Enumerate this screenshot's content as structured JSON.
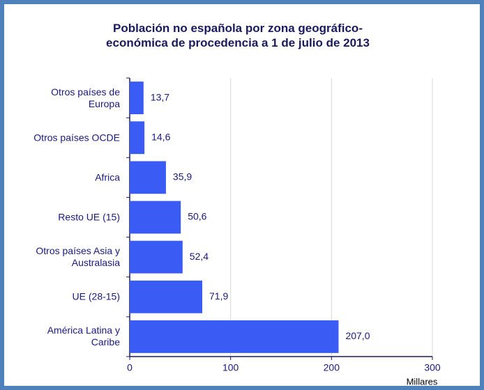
{
  "chart_data": {
    "type": "bar",
    "orientation": "horizontal",
    "title": "Población no española por zona geográfico-\neconómica de procedencia a 1 de julio de 2013",
    "categories": [
      "Otros países de\nEuropa",
      "Otros países OCDE",
      "Africa",
      "Resto UE (15)",
      "Otros países Asia y\nAustralasia",
      "UE (28-15)",
      "América Latina y\nCaribe"
    ],
    "values": [
      13.7,
      14.6,
      35.9,
      50.6,
      52.4,
      71.9,
      207.0
    ],
    "value_labels": [
      "13,7",
      "14,6",
      "35,9",
      "50,6",
      "52,4",
      "71,9",
      "207,0"
    ],
    "color": "#3a5cf5",
    "xlim": [
      0,
      300
    ],
    "xticks": [
      0,
      100,
      200,
      300
    ],
    "grid": true,
    "xlabel": "Millares"
  }
}
